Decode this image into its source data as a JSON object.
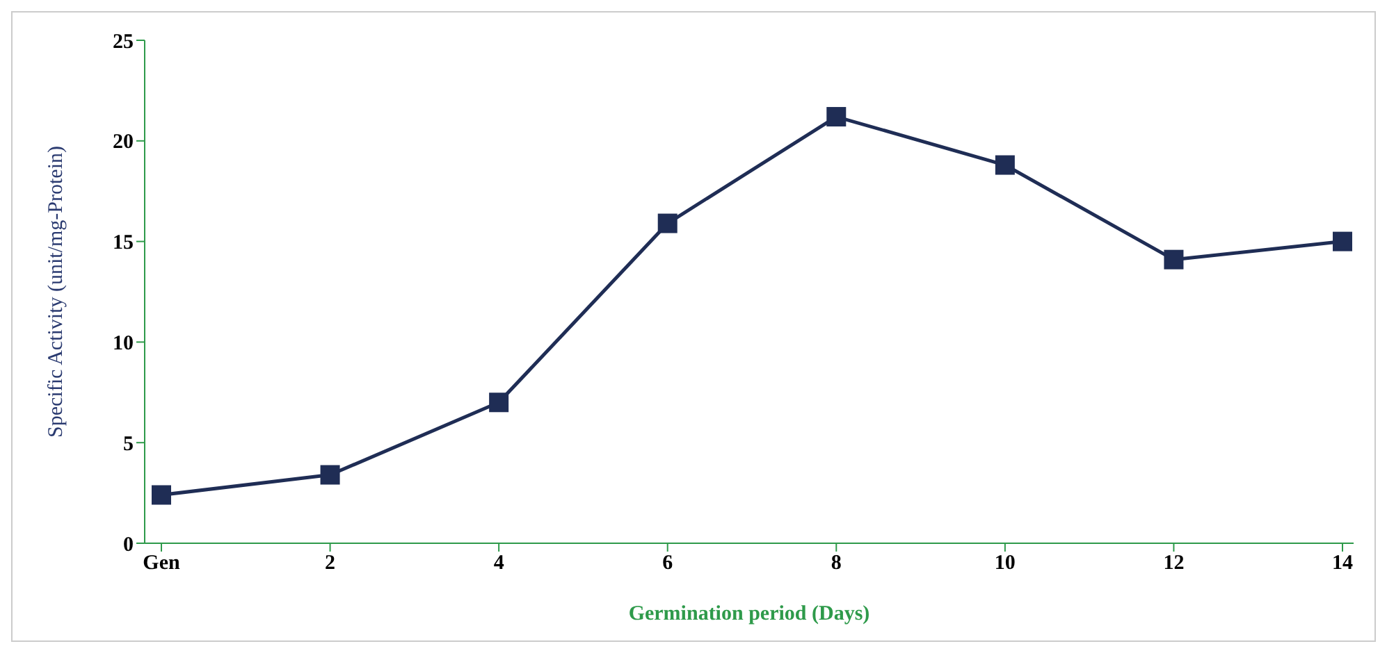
{
  "chart_data": {
    "type": "line",
    "xlabel": "Germination period (Days)",
    "ylabel": "Specific Activity (unit/mg-Protein)",
    "categories": [
      "Gen",
      "2",
      "4",
      "6",
      "8",
      "10",
      "12",
      "14"
    ],
    "series": [
      {
        "color": "#1f2d55",
        "values": [
          2.4,
          3.4,
          7.0,
          15.9,
          21.2,
          18.8,
          14.1,
          15.0
        ]
      }
    ],
    "ylim": [
      0,
      25
    ],
    "yticks": [
      0,
      5,
      10,
      15,
      20,
      25
    ],
    "grid": false,
    "legend": false,
    "marker": "square",
    "line_style": "solid"
  }
}
